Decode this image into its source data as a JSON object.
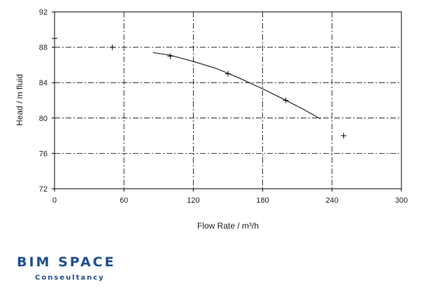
{
  "chart_data": {
    "type": "line",
    "xlabel": "Flow Rate / m³/h",
    "ylabel": "Head / m fluid",
    "xlim": [
      0,
      300
    ],
    "ylim": [
      72,
      92
    ],
    "x_ticks": [
      "0",
      "60",
      "120",
      "180",
      "240",
      "300"
    ],
    "y_ticks": [
      "72",
      "76",
      "80",
      "84",
      "88",
      "92"
    ],
    "grid": true,
    "series": [
      {
        "type": "line",
        "x": [
          85,
          100,
          120,
          140,
          160,
          180,
          200,
          215,
          230
        ],
        "y": [
          87.4,
          87.1,
          86.4,
          85.6,
          84.5,
          83.3,
          82.0,
          81.0,
          79.9
        ]
      },
      {
        "type": "scatter",
        "marker": "+",
        "x": [
          0,
          50,
          100,
          150,
          200,
          250
        ],
        "y": [
          89,
          88,
          87,
          85,
          82,
          78
        ]
      }
    ]
  },
  "logo": {
    "title": "BIM SPACE",
    "subtitle": "Conseultancy"
  },
  "colors": {
    "line": "#000000",
    "grid": "#000000",
    "logo": "#1f4f8f"
  }
}
